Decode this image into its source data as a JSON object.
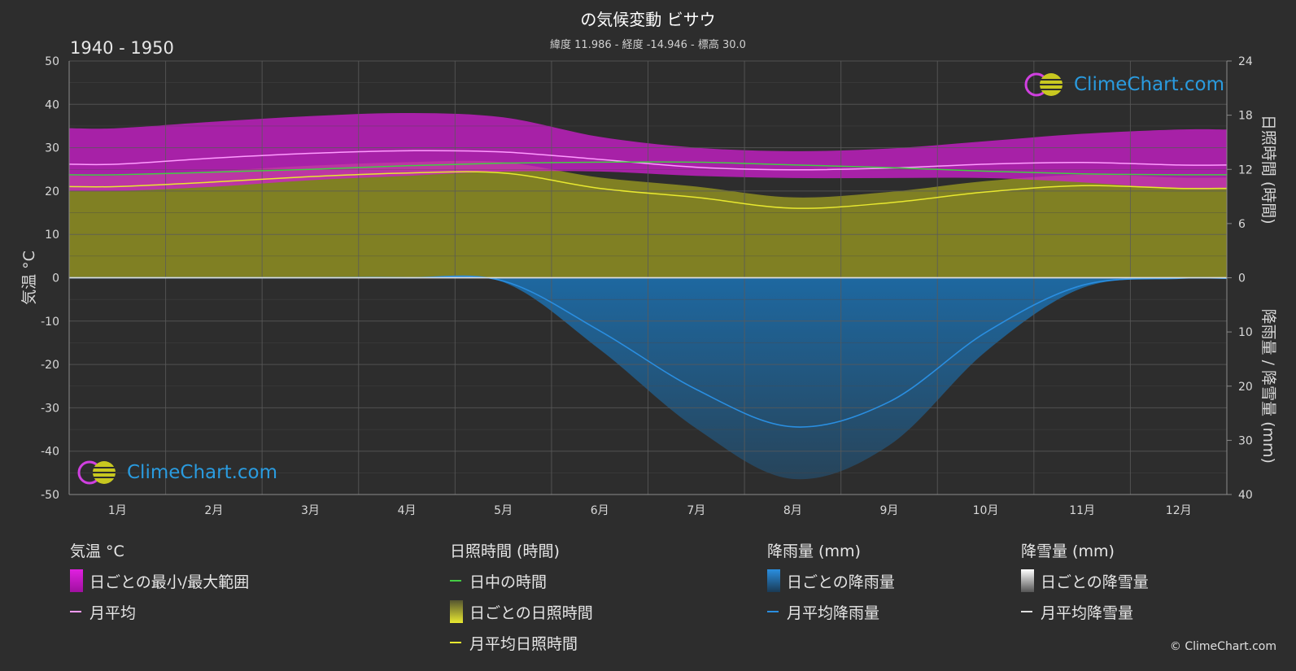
{
  "title": "の気候変動 ビサウ",
  "subtitle": "緯度 11.986 - 経度 -14.946 - 標高 30.0",
  "period": "1940 - 1950",
  "logo_text": "ClimeChart.com",
  "copyright": "© ClimeChart.com",
  "axes": {
    "left_label": "気温 °C",
    "right_top_label": "日照時間 (時間)",
    "right_bottom_label": "降雨量 / 降雪量 (mm)",
    "left_ticks": [
      "50",
      "40",
      "30",
      "20",
      "10",
      "0",
      "-10",
      "-20",
      "-30",
      "-40",
      "-50"
    ],
    "right_top_ticks": [
      "24",
      "18",
      "12",
      "6",
      "0"
    ],
    "right_bottom_ticks": [
      "10",
      "20",
      "30",
      "40"
    ]
  },
  "chart_data": {
    "type": "line",
    "categories": [
      "1月",
      "2月",
      "3月",
      "4月",
      "5月",
      "6月",
      "7月",
      "8月",
      "9月",
      "10月",
      "11月",
      "12月"
    ],
    "ylim_temperature": [
      -50,
      50
    ],
    "ylim_sunshine_hours": [
      0,
      24
    ],
    "ylim_rain_mm": [
      0,
      40
    ],
    "grid": true,
    "series": [
      {
        "name": "月平均",
        "unit": "°C",
        "color": "#ff9cff",
        "values": [
          26.2,
          27.6,
          28.7,
          29.3,
          29.0,
          27.3,
          25.5,
          24.9,
          25.3,
          26.2,
          26.6,
          26.0
        ]
      },
      {
        "name": "日中の時間",
        "unit": "時間",
        "color": "#44cc44",
        "values": [
          11.4,
          11.7,
          12.0,
          12.4,
          12.7,
          12.8,
          12.8,
          12.5,
          12.2,
          11.8,
          11.5,
          11.4
        ]
      },
      {
        "name": "月平均日照時間",
        "unit": "時間",
        "color": "#e8e830",
        "values": [
          10.1,
          10.6,
          11.2,
          11.6,
          11.6,
          9.9,
          8.9,
          7.7,
          8.3,
          9.5,
          10.2,
          9.9
        ]
      },
      {
        "name": "月平均降雨量",
        "unit": "mm",
        "color": "#2a8ee0",
        "values": [
          0.0,
          0.0,
          0.0,
          0.0,
          0.6,
          9.8,
          20.6,
          27.5,
          22.9,
          10.1,
          1.4,
          0.1
        ]
      },
      {
        "name": "月平均降雪量",
        "unit": "mm",
        "color": "#e0e0e0",
        "values": [
          0,
          0,
          0,
          0,
          0,
          0,
          0,
          0,
          0,
          0,
          0,
          0
        ]
      }
    ],
    "daily_range": {
      "name": "日ごとの最小/最大範囲",
      "color": "#d01ed0",
      "max": [
        34.5,
        36.0,
        37.3,
        38.0,
        37.0,
        32.5,
        30.0,
        29.2,
        29.8,
        31.5,
        33.2,
        34.2
      ],
      "min": [
        20.0,
        21.0,
        22.5,
        23.5,
        24.5,
        24.5,
        23.5,
        23.0,
        23.0,
        23.0,
        22.0,
        20.5
      ]
    }
  },
  "legend": {
    "temperature": {
      "title": "気温 °C",
      "items": [
        "日ごとの最小/最大範囲",
        "月平均"
      ]
    },
    "sunshine": {
      "title": "日照時間 (時間)",
      "items": [
        "日中の時間",
        "日ごとの日照時間",
        "月平均日照時間"
      ]
    },
    "rain": {
      "title": "降雨量 (mm)",
      "items": [
        "日ごとの降雨量",
        "月平均降雨量"
      ]
    },
    "snow": {
      "title": "降雪量 (mm)",
      "items": [
        "日ごとの降雪量",
        "月平均降雪量"
      ]
    }
  }
}
